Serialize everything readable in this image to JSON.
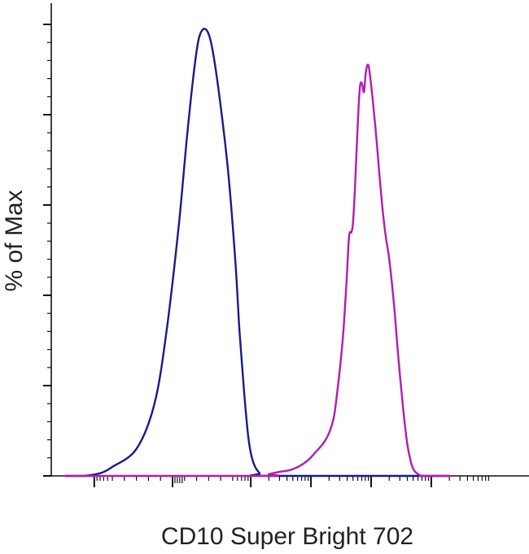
{
  "chart_data": {
    "type": "line",
    "title": "",
    "xlabel": "CD10 Super Bright 702",
    "ylabel": "% of Max",
    "x_scale": "biexponential",
    "xlim": [
      -300,
      200000
    ],
    "ylim": [
      0,
      100
    ],
    "grid": false,
    "legend": "none",
    "x_tick_labels": [],
    "y_tick_labels": [],
    "series": [
      {
        "color": "#1a1a8c",
        "points": [
          [
            -300,
            0
          ],
          [
            -150,
            0
          ],
          [
            -80,
            0.6
          ],
          [
            -50,
            2
          ],
          [
            -30,
            6
          ],
          [
            -15,
            16
          ],
          [
            -5,
            32
          ],
          [
            5,
            55
          ],
          [
            12,
            75
          ],
          [
            18,
            90
          ],
          [
            22,
            97
          ],
          [
            27,
            99
          ],
          [
            32,
            96
          ],
          [
            38,
            86
          ],
          [
            46,
            68
          ],
          [
            55,
            48
          ],
          [
            65,
            32
          ],
          [
            78,
            18
          ],
          [
            92,
            8
          ],
          [
            110,
            3
          ],
          [
            140,
            0.6
          ],
          [
            180,
            0
          ],
          [
            200000,
            0
          ]
        ]
      },
      {
        "color": "#b31bb3",
        "points": [
          [
            -300,
            0
          ],
          [
            150,
            0
          ],
          [
            200,
            0.4
          ],
          [
            300,
            0.9
          ],
          [
            450,
            1.3
          ],
          [
            650,
            2.2
          ],
          [
            900,
            3.5
          ],
          [
            1200,
            5.3
          ],
          [
            1600,
            7.2
          ],
          [
            2000,
            9.5
          ],
          [
            2400,
            13
          ],
          [
            2700,
            18
          ],
          [
            3100,
            25
          ],
          [
            3500,
            33
          ],
          [
            3900,
            43
          ],
          [
            4300,
            53
          ],
          [
            4700,
            54
          ],
          [
            5000,
            56
          ],
          [
            5400,
            64
          ],
          [
            6000,
            78
          ],
          [
            6500,
            86
          ],
          [
            7000,
            87
          ],
          [
            7600,
            85
          ],
          [
            8100,
            89
          ],
          [
            8700,
            91
          ],
          [
            9300,
            90
          ],
          [
            10500,
            84
          ],
          [
            12000,
            76
          ],
          [
            13500,
            68
          ],
          [
            15500,
            59
          ],
          [
            17500,
            53
          ],
          [
            20000,
            48
          ],
          [
            24000,
            38
          ],
          [
            28000,
            27
          ],
          [
            34000,
            15
          ],
          [
            40000,
            7
          ],
          [
            46000,
            3
          ],
          [
            52000,
            1.2
          ],
          [
            62000,
            0.3
          ],
          [
            75000,
            0
          ],
          [
            200000,
            0
          ]
        ]
      }
    ]
  }
}
